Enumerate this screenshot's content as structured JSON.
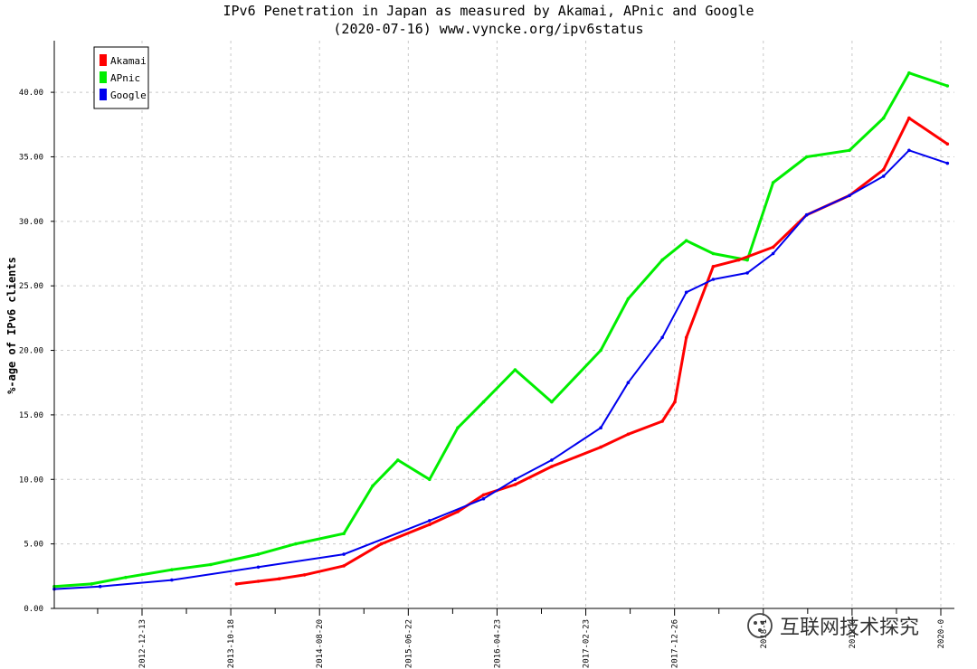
{
  "chart_data": {
    "type": "line",
    "title": "IPv6 Penetration in Japan as measured by Akamai, APnic and Google",
    "subtitle": "(2020-07-16) www.vyncke.org/ipv6status",
    "ylabel": "%-age of IPv6 clients",
    "xlabel": "",
    "ylim": [
      0,
      44
    ],
    "yticks": [
      "0.00",
      "5.00",
      "10.00",
      "15.00",
      "20.00",
      "25.00",
      "30.00",
      "35.00",
      "40.00"
    ],
    "xlim": [
      "2011-10-20",
      "2020-08-10"
    ],
    "xticks": [
      "2012-12-13",
      "2013-10-18",
      "2014-08-20",
      "2015-06-22",
      "2016-04-23",
      "2017-02-23",
      "2017-12-26",
      "2018-1",
      "2019-0",
      "2020-0"
    ],
    "grid": true,
    "legend_position": "top-left",
    "series": [
      {
        "name": "Akamai",
        "color": "#ff0000",
        "x": [
          "2013-08-01",
          "2013-10-18",
          "2014-01-01",
          "2014-04-01",
          "2014-08-20",
          "2015-01-01",
          "2015-06-22",
          "2015-10-01",
          "2016-01-01",
          "2016-04-23",
          "2016-09-01",
          "2017-02-23",
          "2017-06-01",
          "2017-10-01",
          "2017-11-15",
          "2017-12-26",
          "2018-04-01",
          "2018-07-01",
          "2018-11-01",
          "2019-03-01",
          "2019-08-01",
          "2019-12-01",
          "2020-03-01",
          "2020-07-16"
        ],
        "y": [
          1.9,
          2.1,
          2.3,
          2.6,
          3.3,
          5.0,
          6.5,
          7.5,
          8.8,
          9.6,
          11.0,
          12.5,
          13.5,
          14.5,
          16.0,
          21.0,
          26.5,
          27.0,
          28.0,
          30.5,
          32.0,
          34.0,
          38.0,
          36.0
        ]
      },
      {
        "name": "APnic",
        "color": "#00ee00",
        "x": [
          "2011-10-20",
          "2012-03-01",
          "2012-07-01",
          "2012-12-13",
          "2013-05-01",
          "2013-10-18",
          "2014-03-01",
          "2014-08-20",
          "2014-12-01",
          "2015-03-01",
          "2015-06-22",
          "2015-10-01",
          "2016-01-01",
          "2016-04-23",
          "2016-09-01",
          "2017-02-23",
          "2017-06-01",
          "2017-10-01",
          "2017-12-26",
          "2018-04-01",
          "2018-08-01",
          "2018-11-01",
          "2019-03-01",
          "2019-08-01",
          "2019-12-01",
          "2020-03-01",
          "2020-07-16"
        ],
        "y": [
          1.7,
          1.9,
          2.4,
          3.0,
          3.4,
          4.2,
          5.0,
          5.8,
          9.5,
          11.5,
          10.0,
          14.0,
          16.0,
          18.5,
          16.0,
          20.0,
          24.0,
          27.0,
          28.5,
          27.5,
          27.0,
          33.0,
          35.0,
          35.5,
          38.0,
          41.5,
          40.5
        ]
      },
      {
        "name": "Google",
        "color": "#0000ee",
        "x": [
          "2011-10-20",
          "2012-04-01",
          "2012-12-13",
          "2013-10-18",
          "2014-08-20",
          "2015-06-22",
          "2016-01-01",
          "2016-04-23",
          "2016-09-01",
          "2017-02-23",
          "2017-06-01",
          "2017-10-01",
          "2017-12-26",
          "2018-04-01",
          "2018-08-01",
          "2018-11-01",
          "2019-03-01",
          "2019-08-01",
          "2019-12-01",
          "2020-03-01",
          "2020-07-16"
        ],
        "y": [
          1.5,
          1.7,
          2.2,
          3.2,
          4.2,
          6.8,
          8.5,
          10.0,
          11.5,
          14.0,
          17.5,
          21.0,
          24.5,
          25.5,
          26.0,
          27.5,
          30.5,
          32.0,
          33.5,
          35.5,
          34.5
        ]
      }
    ]
  },
  "watermark": {
    "icon": "wechat-icon",
    "text": "互联网技术探究"
  }
}
